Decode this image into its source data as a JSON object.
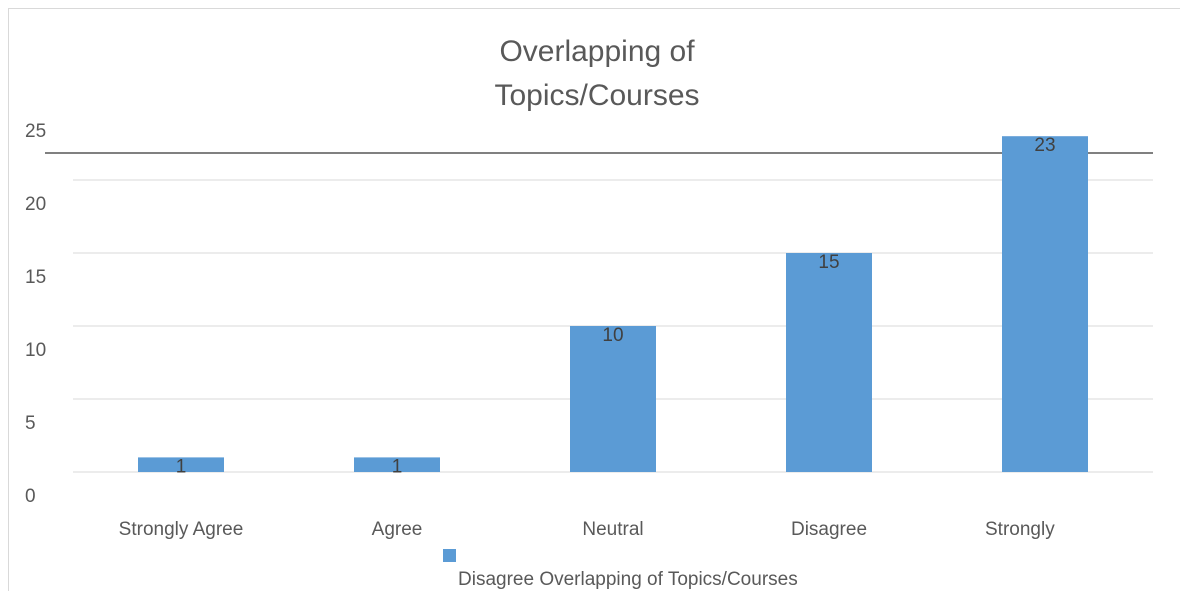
{
  "chart_data": {
    "type": "bar",
    "title": "Overlapping of Topics/Courses",
    "categories": [
      "Strongly Agree",
      "Agree",
      "Neutral",
      "Disagree",
      "Strongly"
    ],
    "series": [
      {
        "name": "Disagree Overlapping of Topics/Courses",
        "color": "#5b9bd5",
        "values": [
          1,
          1,
          10,
          15,
          23
        ]
      }
    ],
    "ylim": [
      0,
      25
    ],
    "yticks": [
      0,
      5,
      10,
      15,
      20,
      25
    ],
    "grid": true
  }
}
